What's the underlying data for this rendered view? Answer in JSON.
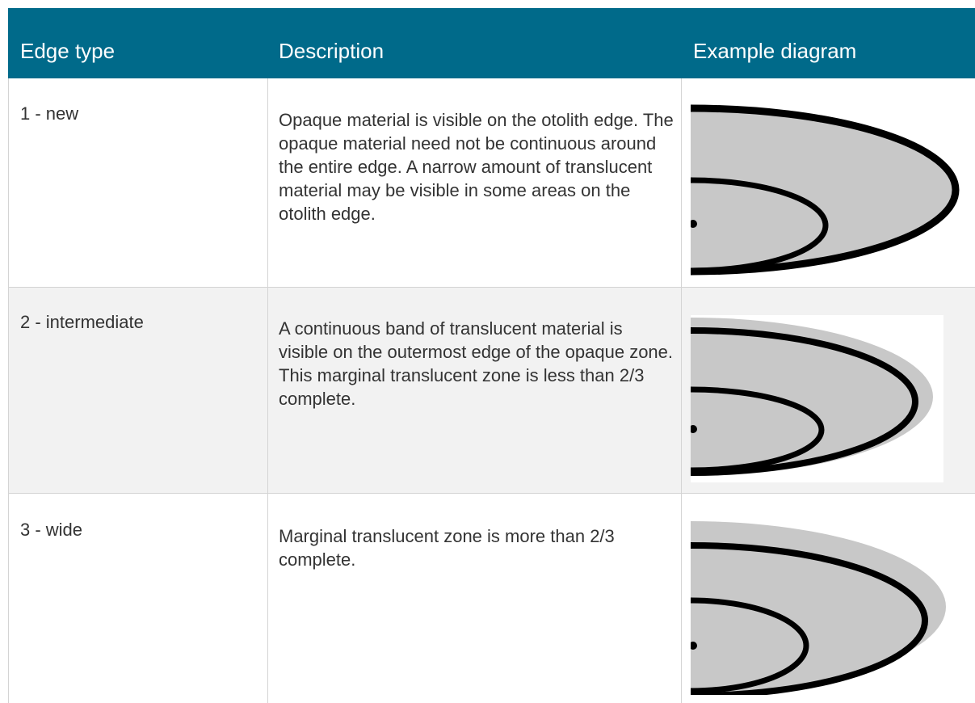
{
  "table": {
    "headers": [
      "Edge type",
      "Description",
      "Example diagram"
    ],
    "rows": [
      [
        "1 - new",
        "Opaque material is visible on the otolith edge. The opaque material need not be continuous around the entire edge. A narrow amount of translucent material may be visible in some areas on the otolith edge."
      ],
      [
        "2 - intermediate",
        "A continuous band of translucent material is visible on the outermost edge of the opaque zone. This marginal translucent zone is less than 2/3 complete."
      ],
      [
        "3 - wide",
        "Marginal translucent zone is more than 2/3 complete."
      ]
    ]
  }
}
